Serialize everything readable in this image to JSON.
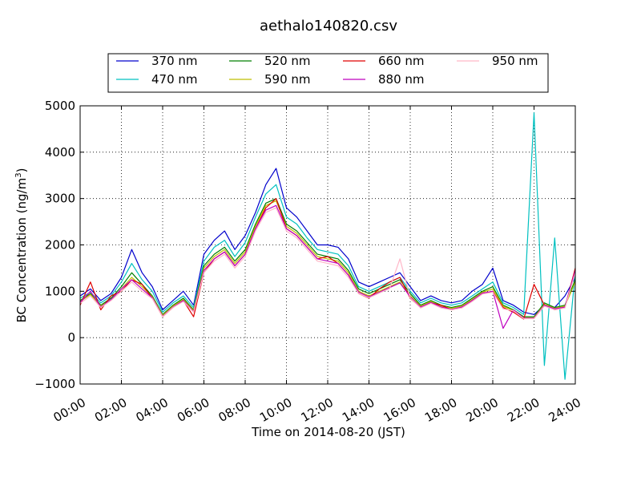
{
  "chart_data": {
    "type": "line",
    "title": "aethalo140820.csv",
    "xlabel": "Time on 2014-08-20 (JST)",
    "ylabel_main": "BC Concentration (ng/m",
    "ylabel_sup": "3",
    "ylabel_end": ")",
    "xlim": [
      0,
      24
    ],
    "ylim": [
      -1000,
      5000
    ],
    "grid": true,
    "legend_position": "top",
    "x_ticks": [
      0,
      2,
      4,
      6,
      8,
      10,
      12,
      14,
      16,
      18,
      20,
      22,
      24
    ],
    "x_tick_labels": [
      "00:00",
      "02:00",
      "04:00",
      "06:00",
      "08:00",
      "10:00",
      "12:00",
      "14:00",
      "16:00",
      "18:00",
      "20:00",
      "22:00",
      "24:00"
    ],
    "y_ticks": [
      -1000,
      0,
      1000,
      2000,
      3000,
      4000,
      5000
    ],
    "y_tick_labels": [
      "−1000",
      "0",
      "1000",
      "2000",
      "3000",
      "4000",
      "5000"
    ],
    "x_hours": [
      0,
      0.5,
      1,
      1.5,
      2,
      2.5,
      3,
      3.5,
      4,
      4.5,
      5,
      5.5,
      6,
      6.5,
      7,
      7.5,
      8,
      8.5,
      9,
      9.5,
      10,
      10.5,
      11,
      11.5,
      12,
      12.5,
      13,
      13.5,
      14,
      14.5,
      15,
      15.5,
      16,
      16.5,
      17,
      17.5,
      18,
      18.5,
      19,
      19.5,
      20,
      20.5,
      21,
      21.5,
      22,
      22.5,
      23,
      23.5,
      24
    ],
    "series": [
      {
        "name": "370 nm",
        "color": "#0000cc",
        "values": [
          900,
          1050,
          800,
          950,
          1300,
          1900,
          1400,
          1100,
          600,
          800,
          1000,
          700,
          1800,
          2100,
          2300,
          1900,
          2200,
          2700,
          3300,
          3650,
          2800,
          2600,
          2300,
          2000,
          2000,
          1950,
          1700,
          1200,
          1100,
          1200,
          1300,
          1400,
          1100,
          800,
          900,
          800,
          750,
          800,
          1000,
          1150,
          1500,
          800,
          700,
          550,
          500,
          700,
          650,
          900,
          1300
        ]
      },
      {
        "name": "470 nm",
        "color": "#00c0c0",
        "values": [
          850,
          980,
          750,
          900,
          1200,
          1600,
          1250,
          1000,
          550,
          750,
          900,
          650,
          1650,
          1950,
          2100,
          1750,
          2050,
          2600,
          3100,
          3300,
          2600,
          2450,
          2150,
          1900,
          1850,
          1800,
          1550,
          1100,
          1000,
          1100,
          1200,
          1300,
          1000,
          750,
          850,
          750,
          700,
          750,
          900,
          1050,
          1200,
          750,
          650,
          500,
          4850,
          -600,
          2150,
          -900,
          1400
        ]
      },
      {
        "name": "520 nm",
        "color": "#007f00",
        "values": [
          800,
          950,
          700,
          850,
          1100,
          1400,
          1150,
          900,
          500,
          700,
          850,
          600,
          1550,
          1800,
          1950,
          1650,
          1900,
          2450,
          2900,
          3000,
          2450,
          2300,
          2050,
          1800,
          1750,
          1700,
          1450,
          1050,
          950,
          1050,
          1150,
          1250,
          950,
          700,
          800,
          700,
          650,
          700,
          850,
          1000,
          1100,
          700,
          600,
          450,
          450,
          750,
          650,
          700,
          1250
        ]
      },
      {
        "name": "590 nm",
        "color": "#bfbf00",
        "values": [
          780,
          930,
          680,
          820,
          1050,
          1300,
          1100,
          880,
          480,
          680,
          820,
          580,
          1500,
          1750,
          1900,
          1600,
          1850,
          2400,
          2850,
          2950,
          2400,
          2250,
          2000,
          1750,
          1700,
          1650,
          1400,
          1000,
          900,
          1000,
          1100,
          1200,
          900,
          680,
          780,
          680,
          630,
          680,
          820,
          980,
          1050,
          680,
          580,
          430,
          430,
          720,
          630,
          680,
          1200
        ]
      },
      {
        "name": "660 nm",
        "color": "#e00000",
        "values": [
          700,
          1200,
          600,
          900,
          1000,
          1250,
          1150,
          850,
          450,
          650,
          800,
          450,
          1400,
          1700,
          1850,
          1550,
          1800,
          2350,
          2800,
          3000,
          2350,
          2200,
          1950,
          1700,
          1750,
          1600,
          1350,
          950,
          850,
          1050,
          1200,
          1300,
          850,
          650,
          750,
          700,
          600,
          650,
          800,
          950,
          1000,
          650,
          550,
          400,
          1150,
          700,
          600,
          650,
          1500
        ]
      },
      {
        "name": "880 nm",
        "color": "#bf00bf",
        "values": [
          760,
          1000,
          660,
          820,
          1050,
          1250,
          1050,
          860,
          460,
          660,
          800,
          560,
          1450,
          1700,
          1850,
          1550,
          1800,
          2350,
          2750,
          2850,
          2350,
          2200,
          1950,
          1700,
          1650,
          1600,
          1350,
          980,
          880,
          980,
          1080,
          1180,
          880,
          660,
          760,
          660,
          610,
          660,
          800,
          960,
          1000,
          200,
          600,
          420,
          420,
          700,
          620,
          660,
          1450
        ]
      },
      {
        "name": "950 nm",
        "color": "#ffb6c8",
        "values": [
          740,
          900,
          650,
          800,
          1000,
          1200,
          1000,
          840,
          450,
          650,
          780,
          550,
          1400,
          1650,
          1800,
          1500,
          1750,
          2300,
          2700,
          2800,
          2300,
          2150,
          1900,
          1650,
          1600,
          1550,
          1300,
          950,
          860,
          960,
          1060,
          1700,
          860,
          640,
          740,
          640,
          600,
          640,
          780,
          940,
          980,
          620,
          580,
          410,
          410,
          680,
          600,
          640,
          1400
        ]
      }
    ]
  }
}
